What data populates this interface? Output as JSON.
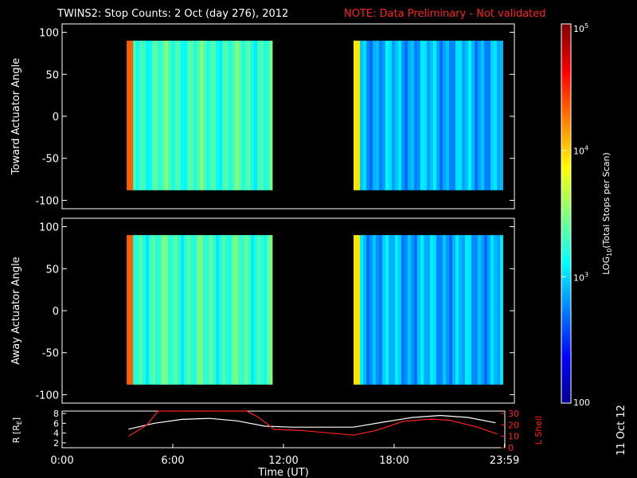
{
  "title": {
    "main": "TWINS2: Stop Counts:  2 Oct (day 276), 2012",
    "note": "NOTE: Data Preliminary - Not validated",
    "note_color": "#ff2020"
  },
  "side_date": "11 Oct 12",
  "chart_data": [
    {
      "type": "heatmap",
      "ylabel": "Toward Actuator Angle",
      "yticks": [
        "100",
        "50",
        "0",
        "-50",
        "-100"
      ],
      "ylim": [
        -110,
        110
      ],
      "xlim": [
        0,
        24
      ],
      "blocks": [
        {
          "x": [
            3.5,
            11.4
          ],
          "y": [
            -88,
            90
          ],
          "colormap": "jet-log",
          "dominant_log10": 3.3
        },
        {
          "x": [
            15.8,
            23.9
          ],
          "y": [
            -88,
            90
          ],
          "colormap": "jet-log",
          "dominant_log10": 2.9
        }
      ]
    },
    {
      "type": "heatmap",
      "ylabel": "Away Actuator Angle",
      "yticks": [
        "100",
        "50",
        "0",
        "-50",
        "-100"
      ],
      "ylim": [
        -110,
        110
      ],
      "xlim": [
        0,
        24
      ],
      "blocks": [
        {
          "x": [
            3.5,
            11.4
          ],
          "y": [
            -88,
            90
          ],
          "colormap": "jet-log",
          "dominant_log10": 3.3
        },
        {
          "x": [
            15.8,
            23.9
          ],
          "y": [
            -88,
            90
          ],
          "colormap": "jet-log",
          "dominant_log10": 2.9
        }
      ]
    },
    {
      "type": "line",
      "ylabel_left": "R [R",
      "ylabel_left_sub": "E",
      "ylabel_left_end": "]",
      "ylabel_right": "L Shell",
      "yticks_left": [
        "8",
        "6",
        "4",
        "2"
      ],
      "yticks_right": [
        "30",
        "20",
        "10",
        "0"
      ],
      "ylim_left": [
        1,
        8.5
      ],
      "ylim_right": [
        0,
        32
      ],
      "xlabel": "Time (UT)",
      "xticks": [
        "0:00",
        "6:00",
        "12:00",
        "18:00",
        "23:59"
      ],
      "xlim": [
        0,
        24
      ],
      "series": [
        {
          "axis": "left",
          "color": "#ffffff",
          "x": [
            3.6,
            5.0,
            6.5,
            8.0,
            9.5,
            11.0,
            12.5,
            14.0,
            15.8,
            17.5,
            19.0,
            20.5,
            22.0,
            23.5
          ],
          "y": [
            4.8,
            6.0,
            6.8,
            7.0,
            6.5,
            5.4,
            5.2,
            5.2,
            5.2,
            6.3,
            7.2,
            7.6,
            7.2,
            6.1
          ]
        },
        {
          "axis": "right",
          "color": "#ff2020",
          "x": [
            3.6,
            4.6,
            5.2,
            10.0,
            10.6,
            11.5,
            13.0,
            15.8,
            17.0,
            18.5,
            20.0,
            21.0,
            22.5,
            23.6
          ],
          "y": [
            10,
            20,
            32,
            32,
            27,
            16,
            15,
            11,
            15,
            23,
            25,
            24,
            18,
            12
          ]
        }
      ]
    }
  ],
  "colorbar": {
    "label_main": "LOG",
    "label_sub": "10",
    "label_rest": "(Total Stops per Scan)",
    "ticks": [
      {
        "base": "10",
        "exp": "5",
        "log": 5
      },
      {
        "base": "10",
        "exp": "4",
        "log": 4
      },
      {
        "base": "10",
        "exp": "3",
        "log": 3
      },
      {
        "base": "100",
        "exp": "",
        "log": 2
      }
    ],
    "range": [
      2,
      5
    ]
  }
}
